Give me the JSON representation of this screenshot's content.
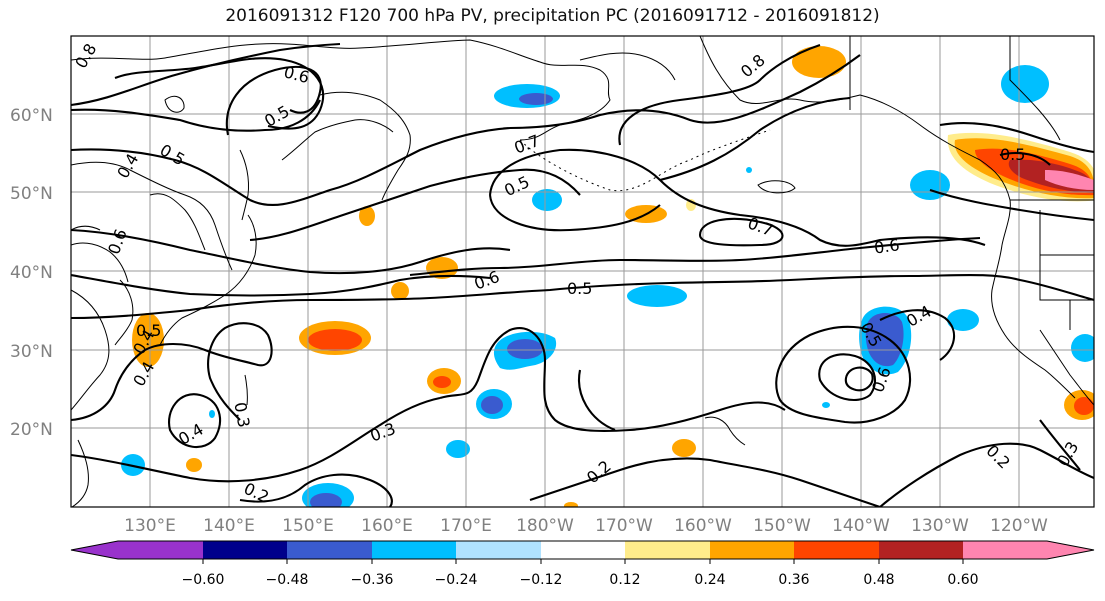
{
  "title": "2016091312 F120 700 hPa PV, precipitation PC (2016091712 - 2016091812)",
  "lat_labels": [
    "60°N",
    "50°N",
    "40°N",
    "30°N",
    "20°N"
  ],
  "lon_labels": [
    "130°E",
    "140°E",
    "150°E",
    "160°E",
    "170°E",
    "180°W",
    "170°W",
    "160°W",
    "150°W",
    "140°W",
    "130°W",
    "120°W"
  ],
  "colorbar": {
    "ticks": [
      "−0.60",
      "−0.48",
      "−0.36",
      "−0.24",
      "−0.12",
      "0.12",
      "0.24",
      "0.36",
      "0.48",
      "0.60"
    ],
    "colors": [
      "#9932cc",
      "#00008b",
      "#3a5bcf",
      "#00bfff",
      "#b0e2ff",
      "#ffffff",
      "#ffec8b",
      "#ffa500",
      "#ff4500",
      "#b22222",
      "#ff85b0"
    ]
  },
  "contour_labels": {
    "l1": "0.8",
    "l2": "0.6",
    "l3": "0.5",
    "l4": "0.8",
    "l5": "0.4",
    "l6": "0.5",
    "l7": "0.7",
    "l8": "0.5",
    "l9": "0.5",
    "l10": "0.7",
    "l11": "0.6",
    "l12": "0.6",
    "l13": "0.5",
    "l14": "0.4",
    "l15": "0.5",
    "l16": "0.6",
    "l17": "0.4",
    "l18": "0.3",
    "l19": "0.4",
    "l20": "0.3",
    "l21": "0.2",
    "l22": "0.2",
    "l23": "0.2",
    "l24": "0.3",
    "l25": "0.6",
    "l26": "0.4",
    "l27": "0.5"
  }
}
